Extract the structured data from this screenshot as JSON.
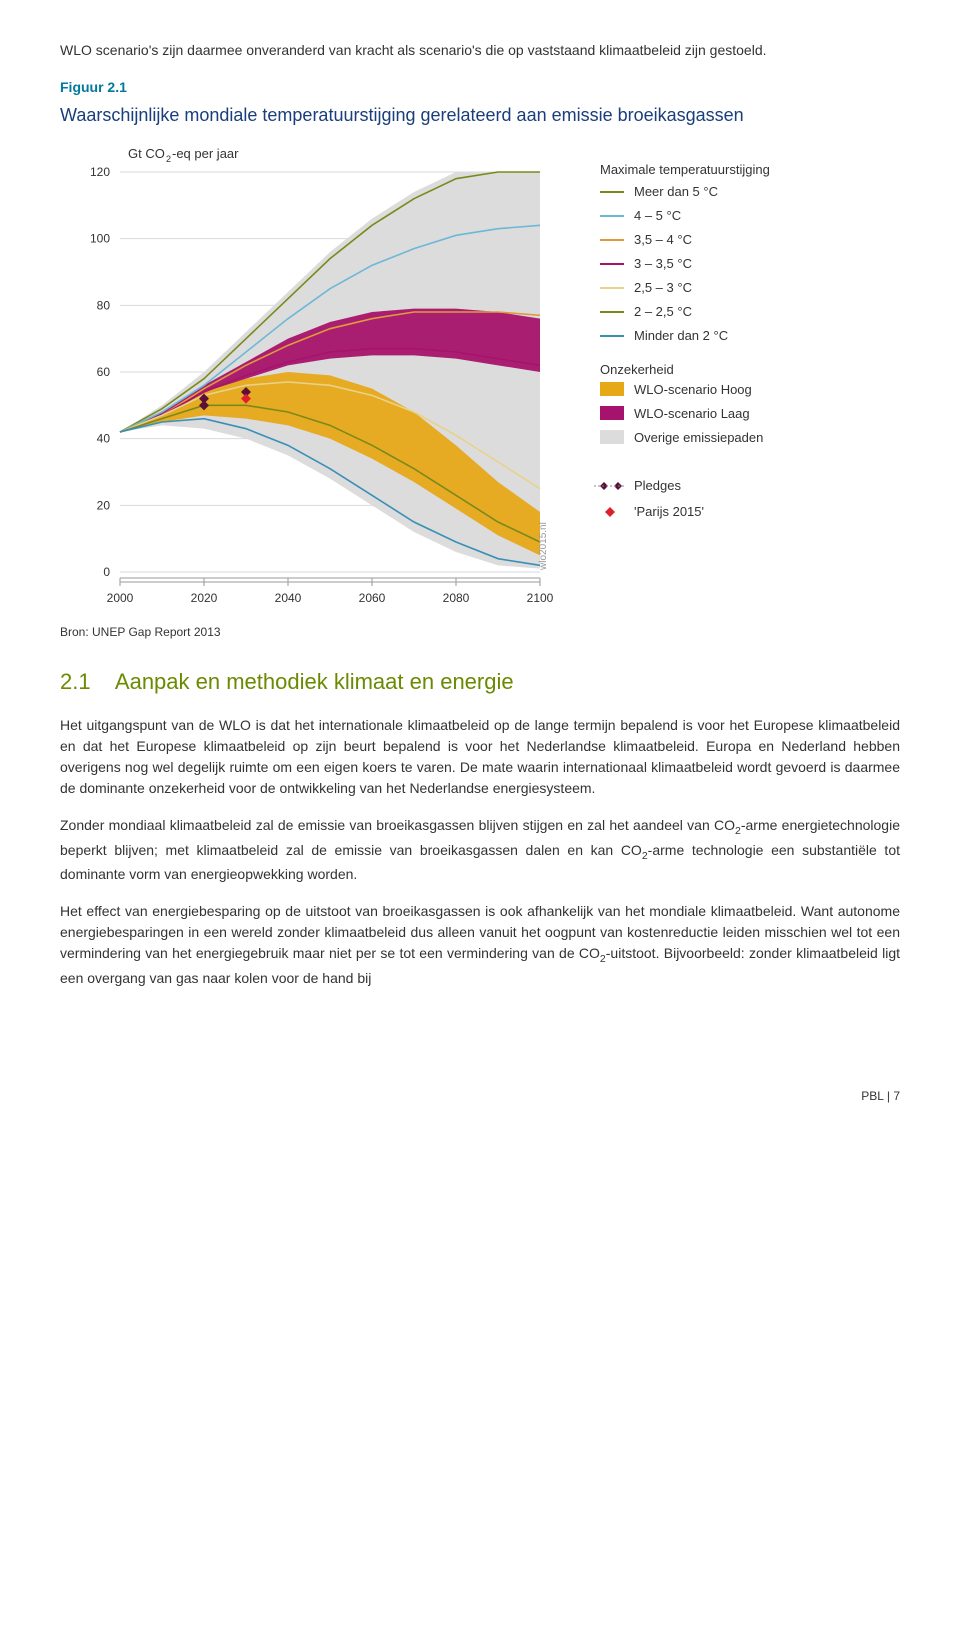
{
  "intro_para": "WLO scenario's zijn daarmee onveranderd van kracht als scenario's die op vaststaand klimaatbeleid zijn gestoeld.",
  "figure_label": "Figuur 2.1",
  "chart": {
    "title": "Waarschijnlijke mondiale temperatuurstijging gerelateerd aan emissie broeikasgassen",
    "y_axis_label": "Gt CO",
    "y_axis_label_sub": "2",
    "y_axis_label_suffix": "-eq per jaar",
    "y_ticks": [
      0,
      20,
      40,
      60,
      80,
      100,
      120
    ],
    "x_ticks": [
      2000,
      2020,
      2040,
      2060,
      2080,
      2100
    ],
    "xlim": [
      2000,
      2100
    ],
    "ylim": [
      0,
      120
    ],
    "plot_bg": "#ffffff",
    "grid_color": "#d9d9d9",
    "axis_text_color": "#333333",
    "tick_font_size": 12,
    "uncertainty_grey": "#dcdcdc",
    "band_hoog": {
      "color": "#e6a817",
      "upper": [
        [
          2000,
          42
        ],
        [
          2010,
          47
        ],
        [
          2020,
          55
        ],
        [
          2030,
          58
        ],
        [
          2040,
          60
        ],
        [
          2050,
          59
        ],
        [
          2060,
          55
        ],
        [
          2070,
          48
        ],
        [
          2080,
          38
        ],
        [
          2090,
          27
        ],
        [
          2100,
          18
        ]
      ],
      "lower": [
        [
          2000,
          42
        ],
        [
          2010,
          45
        ],
        [
          2020,
          47
        ],
        [
          2030,
          46
        ],
        [
          2040,
          44
        ],
        [
          2050,
          40
        ],
        [
          2060,
          34
        ],
        [
          2070,
          27
        ],
        [
          2080,
          19
        ],
        [
          2090,
          11
        ],
        [
          2100,
          5
        ]
      ]
    },
    "band_laag": {
      "color": "#a6136c",
      "upper": [
        [
          2000,
          42
        ],
        [
          2010,
          48
        ],
        [
          2020,
          56
        ],
        [
          2030,
          63
        ],
        [
          2040,
          70
        ],
        [
          2050,
          75
        ],
        [
          2060,
          78
        ],
        [
          2070,
          79
        ],
        [
          2080,
          79
        ],
        [
          2090,
          78
        ],
        [
          2100,
          76
        ]
      ],
      "lower": [
        [
          2000,
          42
        ],
        [
          2010,
          47
        ],
        [
          2020,
          54
        ],
        [
          2030,
          58
        ],
        [
          2040,
          62
        ],
        [
          2050,
          64
        ],
        [
          2060,
          65
        ],
        [
          2070,
          65
        ],
        [
          2080,
          64
        ],
        [
          2090,
          62
        ],
        [
          2100,
          60
        ]
      ]
    },
    "grey_upper": [
      [
        2000,
        42
      ],
      [
        2010,
        50
      ],
      [
        2020,
        60
      ],
      [
        2030,
        72
      ],
      [
        2040,
        84
      ],
      [
        2050,
        96
      ],
      [
        2060,
        106
      ],
      [
        2070,
        114
      ],
      [
        2080,
        120
      ],
      [
        2090,
        124
      ],
      [
        2100,
        128
      ]
    ],
    "grey_lower": [
      [
        2000,
        42
      ],
      [
        2010,
        44
      ],
      [
        2020,
        43
      ],
      [
        2030,
        40
      ],
      [
        2040,
        35
      ],
      [
        2050,
        28
      ],
      [
        2060,
        20
      ],
      [
        2070,
        12
      ],
      [
        2080,
        6
      ],
      [
        2090,
        2
      ],
      [
        2100,
        1
      ]
    ],
    "lines": {
      "meer5": {
        "color": "#7a8a1a",
        "pts": [
          [
            2000,
            42
          ],
          [
            2010,
            49
          ],
          [
            2020,
            58
          ],
          [
            2030,
            70
          ],
          [
            2040,
            82
          ],
          [
            2050,
            94
          ],
          [
            2060,
            104
          ],
          [
            2070,
            112
          ],
          [
            2080,
            118
          ],
          [
            2090,
            123
          ],
          [
            2100,
            127
          ]
        ]
      },
      "4_5": {
        "color": "#6cb8d6",
        "pts": [
          [
            2000,
            42
          ],
          [
            2010,
            48
          ],
          [
            2020,
            56
          ],
          [
            2030,
            66
          ],
          [
            2040,
            76
          ],
          [
            2050,
            85
          ],
          [
            2060,
            92
          ],
          [
            2070,
            97
          ],
          [
            2080,
            101
          ],
          [
            2090,
            103
          ],
          [
            2100,
            104
          ]
        ]
      },
      "35_4": {
        "color": "#e09a3a",
        "pts": [
          [
            2000,
            42
          ],
          [
            2010,
            47
          ],
          [
            2020,
            55
          ],
          [
            2030,
            62
          ],
          [
            2040,
            68
          ],
          [
            2050,
            73
          ],
          [
            2060,
            76
          ],
          [
            2070,
            78
          ],
          [
            2080,
            78
          ],
          [
            2090,
            78
          ],
          [
            2100,
            77
          ]
        ]
      },
      "3_35": {
        "color": "#a6136c",
        "pts": [
          [
            2000,
            42
          ],
          [
            2010,
            47
          ],
          [
            2020,
            54
          ],
          [
            2030,
            59
          ],
          [
            2040,
            63
          ],
          [
            2050,
            66
          ],
          [
            2060,
            67
          ],
          [
            2070,
            67
          ],
          [
            2080,
            66
          ],
          [
            2090,
            64
          ],
          [
            2100,
            62
          ]
        ]
      },
      "25_3": {
        "color": "#e8d28a",
        "pts": [
          [
            2000,
            42
          ],
          [
            2010,
            47
          ],
          [
            2020,
            53
          ],
          [
            2030,
            56
          ],
          [
            2040,
            57
          ],
          [
            2050,
            56
          ],
          [
            2060,
            53
          ],
          [
            2070,
            48
          ],
          [
            2080,
            41
          ],
          [
            2090,
            33
          ],
          [
            2100,
            25
          ]
        ]
      },
      "2_25": {
        "color": "#7a8a1a",
        "pts": [
          [
            2000,
            42
          ],
          [
            2010,
            46
          ],
          [
            2020,
            50
          ],
          [
            2030,
            50
          ],
          [
            2040,
            48
          ],
          [
            2050,
            44
          ],
          [
            2060,
            38
          ],
          [
            2070,
            31
          ],
          [
            2080,
            23
          ],
          [
            2090,
            15
          ],
          [
            2100,
            9
          ]
        ]
      },
      "minder2": {
        "color": "#3a8fb7",
        "pts": [
          [
            2000,
            42
          ],
          [
            2010,
            45
          ],
          [
            2020,
            46
          ],
          [
            2030,
            43
          ],
          [
            2040,
            38
          ],
          [
            2050,
            31
          ],
          [
            2060,
            23
          ],
          [
            2070,
            15
          ],
          [
            2080,
            9
          ],
          [
            2090,
            4
          ],
          [
            2100,
            2
          ]
        ]
      }
    },
    "pledges": [
      [
        2020,
        52
      ],
      [
        2020,
        50
      ],
      [
        2030,
        54
      ]
    ],
    "pledges_color": "#5a1038",
    "parijs_marker": [
      2030,
      52
    ],
    "parijs_color": "#e01f2d",
    "legend": {
      "heading1": "Maximale temperatuurstijging",
      "items1": [
        {
          "label": "Meer dan 5 °C",
          "color": "#7a8a1a"
        },
        {
          "label": "4 – 5 °C",
          "color": "#6cb8d6"
        },
        {
          "label": "3,5 – 4 °C",
          "color": "#e09a3a"
        },
        {
          "label": "3 – 3,5 °C",
          "color": "#a6136c"
        },
        {
          "label": "2,5 – 3 °C",
          "color": "#e8d28a"
        },
        {
          "label": "2 – 2,5 °C",
          "color": "#7a8a1a"
        },
        {
          "label": "Minder dan 2 °C",
          "color": "#3a8fb7"
        }
      ],
      "heading2": "Onzekerheid",
      "items2": [
        {
          "label": "WLO-scenario Hoog",
          "color": "#e6a817"
        },
        {
          "label": "WLO-scenario Laag",
          "color": "#a6136c"
        },
        {
          "label": "Overige emissiepaden",
          "color": "#dcdcdc"
        }
      ],
      "pledges_label": "Pledges",
      "parijs_label": "'Parijs 2015'"
    },
    "source_side": "wlo2015.nl",
    "source": "Bron: UNEP Gap Report 2013"
  },
  "section": {
    "num": "2.1",
    "title": "Aanpak en methodiek klimaat en energie"
  },
  "paras": {
    "p1a": "Het uitgangspunt van de WLO is dat het internationale klimaatbeleid op de lange termijn bepalend is voor het Europese klimaatbeleid en dat het Europese klimaatbeleid op zijn beurt bepalend is voor het Nederlandse klimaatbeleid. Europa en Nederland hebben overigens nog wel degelijk ruimte om een eigen koers te varen. De mate waarin internationaal klimaatbeleid wordt gevoerd is daarmee de dominante onzekerheid voor de ontwikkeling van het Nederlandse energiesysteem.",
    "p2a": "Zonder mondiaal klimaatbeleid zal de emissie van broeikasgassen blijven stijgen en zal het aandeel van CO",
    "p2b": "-arme energietechnologie beperkt blijven; met klimaatbeleid zal de emissie van broeikasgassen dalen en kan CO",
    "p2c": "-arme technologie een substantiële tot dominante vorm van energieopwekking worden.",
    "p3a": "Het effect van energiebesparing op de uitstoot van broeikasgassen is ook afhankelijk van het mondiale klimaatbeleid. Want autonome energiebesparingen in een wereld zonder klimaatbeleid dus alleen vanuit het oogpunt van kostenreductie leiden misschien wel tot een vermindering van het energiegebruik maar niet per se tot een vermindering van de CO",
    "p3b": "-uitstoot. Bijvoorbeeld: zonder klimaatbeleid ligt een overgang van gas naar kolen voor de hand bij"
  },
  "footer": "PBL | 7"
}
